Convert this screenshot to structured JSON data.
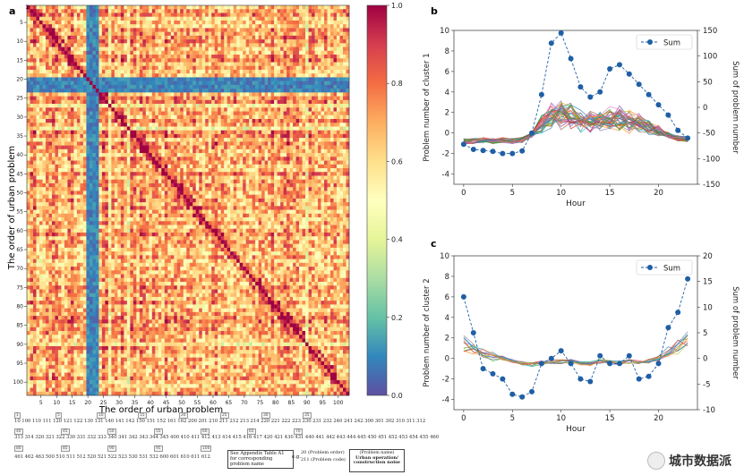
{
  "panels": {
    "a": {
      "label": "a",
      "xlabel": "The order of urban problem",
      "ylabel": "The order of urban problem",
      "axis_ticks": [
        "5",
        "10",
        "15",
        "20",
        "25",
        "30",
        "35",
        "40",
        "45",
        "50",
        "55",
        "60",
        "65",
        "70",
        "75",
        "80",
        "85",
        "90",
        "95",
        "100"
      ],
      "top_tick": "1",
      "colorbar_ticks": [
        "0.0",
        "0.2",
        "0.4",
        "0.6",
        "0.8",
        "1.0"
      ]
    },
    "b": {
      "label": "b"
    },
    "c": {
      "label": "c"
    }
  },
  "chart_data": [
    {
      "type": "heatmap",
      "panel": "a",
      "title": "",
      "xlabel": "The order of urban problem",
      "ylabel": "The order of urban problem",
      "n": 103,
      "low_rows_cols": [
        20,
        21,
        22,
        23
      ],
      "mid_rows_cols": [
        27,
        33,
        90
      ],
      "value_range": [
        0.0,
        1.0
      ],
      "colormap": "Spectral_r"
    },
    {
      "type": "line",
      "panel": "b",
      "xlabel": "Hour",
      "ylabel": "Problem number of cluster 1",
      "y2label": "Sum of problem number",
      "xlim": [
        -1,
        24
      ],
      "ylim": [
        -5,
        10
      ],
      "y2lim": [
        -150,
        150
      ],
      "xticks": [
        0,
        5,
        10,
        15,
        20
      ],
      "yticks": [
        -4,
        -2,
        0,
        2,
        4,
        6,
        8,
        10
      ],
      "y2ticks": [
        -150,
        -100,
        -50,
        0,
        50,
        100,
        150
      ],
      "legend": "Sum",
      "sum": {
        "x": [
          0,
          1,
          2,
          3,
          4,
          5,
          6,
          7,
          8,
          9,
          10,
          11,
          12,
          13,
          14,
          15,
          16,
          17,
          18,
          19,
          20,
          21,
          22,
          23
        ],
        "values": [
          -72,
          -82,
          -84,
          -86,
          -90,
          -90,
          -85,
          -50,
          25,
          125,
          145,
          95,
          40,
          20,
          30,
          75,
          83,
          65,
          45,
          25,
          5,
          -15,
          -45,
          -60
        ]
      },
      "series_count": 38,
      "band": {
        "x": [
          0,
          1,
          2,
          3,
          4,
          5,
          6,
          7,
          8,
          9,
          10,
          11,
          12,
          13,
          14,
          15,
          16,
          17,
          18,
          19,
          20,
          21,
          22,
          23
        ],
        "mean": [
          -0.8,
          -0.8,
          -0.7,
          -0.8,
          -0.7,
          -0.8,
          -0.7,
          -0.2,
          1.0,
          1.8,
          2.0,
          1.7,
          1.3,
          1.2,
          1.4,
          1.5,
          1.5,
          1.3,
          1.0,
          0.6,
          0.2,
          -0.2,
          -0.5,
          -0.6
        ]
      }
    },
    {
      "type": "line",
      "panel": "c",
      "xlabel": "Hour",
      "ylabel": "Problem number of cluster 2",
      "y2label": "Sum of problem number",
      "xlim": [
        -1,
        24
      ],
      "ylim": [
        -5,
        10
      ],
      "y2lim": [
        -10,
        20
      ],
      "xticks": [
        0,
        5,
        10,
        15,
        20
      ],
      "yticks": [
        -4,
        -2,
        0,
        2,
        4,
        6,
        8,
        10
      ],
      "y2ticks": [
        -10,
        -5,
        0,
        5,
        10,
        15,
        20
      ],
      "legend": "Sum",
      "sum": {
        "x": [
          0,
          1,
          2,
          3,
          4,
          5,
          6,
          7,
          8,
          9,
          10,
          11,
          12,
          13,
          14,
          15,
          16,
          17,
          18,
          19,
          20,
          21,
          22,
          23
        ],
        "values": [
          12,
          5,
          -2,
          -3,
          -4,
          -7,
          -7.5,
          -6.5,
          -1,
          0,
          1.5,
          -1,
          -4,
          -4.5,
          0.5,
          -1,
          -1,
          0.5,
          -4,
          -3.5,
          -1,
          6,
          9,
          15.5
        ]
      },
      "series_count": 12,
      "band": {
        "x": [
          0,
          1,
          2,
          3,
          4,
          5,
          6,
          7,
          8,
          9,
          10,
          11,
          12,
          13,
          14,
          15,
          16,
          17,
          18,
          19,
          20,
          21,
          22,
          23
        ],
        "mean": [
          1.5,
          1.0,
          0.5,
          0.2,
          0.0,
          -0.3,
          -0.5,
          -0.6,
          -0.4,
          -0.3,
          -0.3,
          -0.3,
          -0.5,
          -0.5,
          -0.3,
          -0.4,
          -0.4,
          -0.3,
          -0.4,
          -0.3,
          0.0,
          0.6,
          1.2,
          1.8
        ]
      }
    }
  ],
  "bottom_table": {
    "idx_row1": [
      "1",
      "5",
      "10",
      "15",
      "20",
      "25",
      "30",
      "35"
    ],
    "codes_row1": "10 100 110 111 120 121 122 130 131 140 141 142 150 151 152 161 162 200 201 210 211 212 213 214 220 221 222 223 230 231 232 240 241 242 300 301 302 310 311 312",
    "idx_row2": [
      "40",
      "45",
      "50",
      "55",
      "60",
      "65",
      "70"
    ],
    "codes_row2": "313 314 320 321 322 330 331 332 333 340 341 342 343 344 345 400 410 411 412 413 414 415 416 417 420 421 430 431 440 441 442 443 444 445 450 451 452 453 454 455 460",
    "idx_row3": [
      "80",
      "85",
      "90",
      "95",
      "100"
    ],
    "codes_row3": "461 462 463 500 510 511 512 520 521 522 523 530 531 532 600 601 610 611 612 613 620 630",
    "note1": "See Appendix Table A1 for corresponding problem name",
    "note_eg": "e.g.",
    "note_order": "20 (Problem order)",
    "note_code": "211 (Problem code)",
    "note_name_label": "(Problem name)",
    "note_name": "Urban operation/ construction noise"
  },
  "watermark": "城市数据派",
  "colors": {
    "sum_marker": "#1f5fa5",
    "heat_low": "#5e4fa2",
    "heat_high": "#9e0142"
  }
}
